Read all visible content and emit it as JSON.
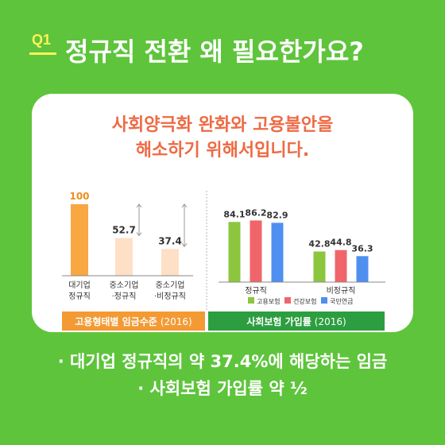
{
  "header": {
    "badge": "Q1",
    "title": "정규직 전환 왜 필요한가요?"
  },
  "card": {
    "subtitle_line1": "사회양극화 완화와 고용불안을",
    "subtitle_line2": "해소하기 위해서입니다."
  },
  "chart_data": [
    {
      "type": "bar",
      "title": "고용형태별 임금수준",
      "title_suffix": "(2016)",
      "categories": [
        [
          "대기업",
          "정규직"
        ],
        [
          "중소기업",
          "·정규직"
        ],
        [
          "중소기업",
          "·비정규직"
        ]
      ],
      "values": [
        100,
        52.7,
        37.4
      ],
      "labels": [
        "100",
        "52.7",
        "37.4"
      ],
      "colors": [
        "#f9a742",
        "#fde0c6",
        "#fde0c6"
      ],
      "ylim": [
        0,
        100
      ]
    },
    {
      "type": "bar",
      "title": "사회보험 가입률",
      "title_suffix": "(2016)",
      "categories": [
        "정규직",
        "비정규직"
      ],
      "series": [
        {
          "name": "고용보험",
          "color": "#8cc63f",
          "values": [
            84.1,
            42.8
          ],
          "labels": [
            "84.1",
            "42.8"
          ]
        },
        {
          "name": "건강보험",
          "color": "#f0656a",
          "values": [
            86.2,
            44.8
          ],
          "labels": [
            "86.2",
            "44.8"
          ]
        },
        {
          "name": "국민연금",
          "color": "#4f8ff0",
          "values": [
            82.9,
            36.3
          ],
          "labels": [
            "82.9",
            "36.3"
          ]
        }
      ],
      "ylim": [
        0,
        100
      ]
    }
  ],
  "bullets": [
    "· 대기업 정규직의 약 37.4%에 해당하는 임금",
    "· 사회보험 가입률 약 ½"
  ]
}
